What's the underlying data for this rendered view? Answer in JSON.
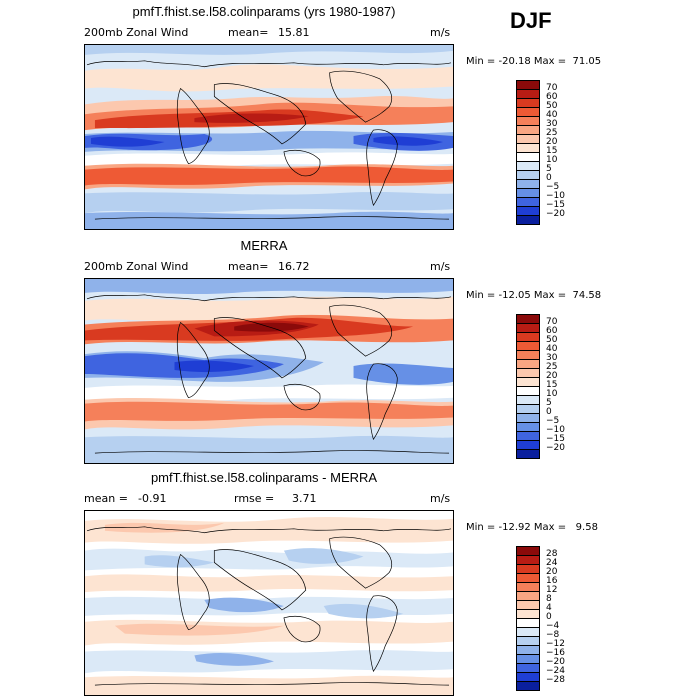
{
  "season": "DJF",
  "panels": [
    {
      "title": "pmfT.fhist.se.l58.colinparams (yrs 1980-1987)",
      "left_label": "200mb Zonal Wind",
      "stat_label": "mean=",
      "stat_value": "15.81",
      "second_stat_label": "",
      "second_stat_value": "",
      "units": "m/s",
      "minmax": "Min = -20.18 Max =  71.05",
      "colorbar_labels": [
        "70",
        "60",
        "50",
        "40",
        "30",
        "25",
        "20",
        "15",
        "10",
        "5",
        "0",
        "−5",
        "−10",
        "−15",
        "−20"
      ],
      "colorbar_colors": [
        "#8b0a0a",
        "#b81c14",
        "#d93a20",
        "#ee5a35",
        "#f5805a",
        "#f9a683",
        "#fcc8ae",
        "#fde4d2",
        "#ffffff",
        "#dbe9f7",
        "#b6d0f0",
        "#8fb2ea",
        "#6690e6",
        "#3f64e0",
        "#1f3ed4",
        "#0a1f9e"
      ]
    },
    {
      "title": "MERRA",
      "left_label": "200mb Zonal Wind",
      "stat_label": "mean=",
      "stat_value": "16.72",
      "second_stat_label": "",
      "second_stat_value": "",
      "units": "m/s",
      "minmax": "Min = -12.05 Max =  74.58",
      "colorbar_labels": [
        "70",
        "60",
        "50",
        "40",
        "30",
        "25",
        "20",
        "15",
        "10",
        "5",
        "0",
        "−5",
        "−10",
        "−15",
        "−20"
      ],
      "colorbar_colors": [
        "#8b0a0a",
        "#b81c14",
        "#d93a20",
        "#ee5a35",
        "#f5805a",
        "#f9a683",
        "#fcc8ae",
        "#fde4d2",
        "#ffffff",
        "#dbe9f7",
        "#b6d0f0",
        "#8fb2ea",
        "#6690e6",
        "#3f64e0",
        "#1f3ed4",
        "#0a1f9e"
      ]
    },
    {
      "title": "pmfT.fhist.se.l58.colinparams - MERRA",
      "left_label": "",
      "stat_label": "mean =",
      "stat_value": "-0.91",
      "second_stat_label": "rmse =",
      "second_stat_value": "3.71",
      "units": "m/s",
      "minmax": "Min = -12.92 Max =   9.58",
      "colorbar_labels": [
        "28",
        "24",
        "20",
        "16",
        "12",
        "8",
        "4",
        "0",
        "−4",
        "−8",
        "−12",
        "−16",
        "−20",
        "−24",
        "−28"
      ],
      "colorbar_colors": [
        "#8b0a0a",
        "#b81c14",
        "#d93a20",
        "#ee5a35",
        "#f5805a",
        "#f9a683",
        "#fcc8ae",
        "#fde4d2",
        "#ffffff",
        "#dbe9f7",
        "#b6d0f0",
        "#8fb2ea",
        "#6690e6",
        "#3f64e0",
        "#1f3ed4",
        "#0a1f9e"
      ]
    }
  ]
}
